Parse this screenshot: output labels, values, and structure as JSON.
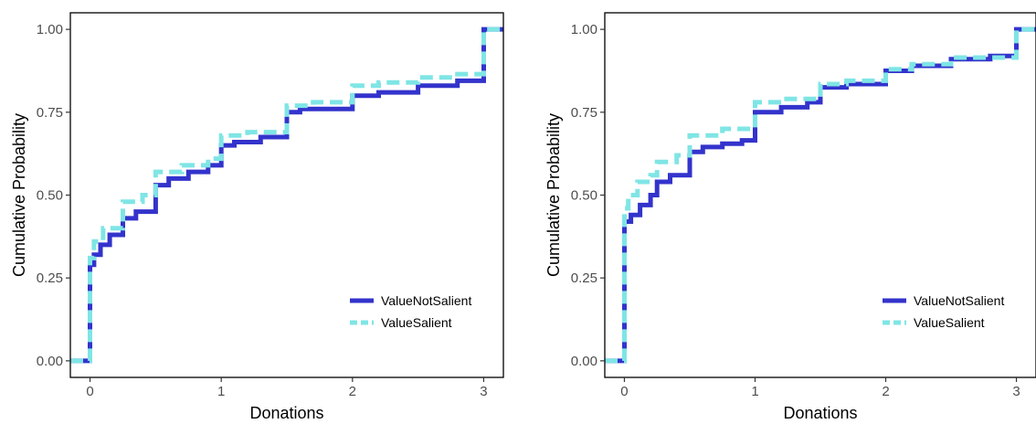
{
  "chart_data": [
    {
      "type": "line",
      "step": true,
      "xlabel": "Donations",
      "ylabel": "Cumulative Probability",
      "xlim": [
        -0.15,
        3.15
      ],
      "ylim": [
        -0.05,
        1.05
      ],
      "xticks": [
        0,
        1,
        2,
        3
      ],
      "xtick_labels": [
        "0",
        "1",
        "2",
        "3"
      ],
      "yticks": [
        0,
        0.25,
        0.5,
        0.75,
        1
      ],
      "ytick_labels": [
        "0.00",
        "0.25",
        "0.50",
        "0.75",
        "1.00"
      ],
      "grid": false,
      "legend_position": "bottom-right",
      "series": [
        {
          "name": "ValueNotSalient",
          "color": "#3333cc",
          "dash": "solid",
          "x": [
            -0.15,
            0,
            0.03,
            0.08,
            0.15,
            0.25,
            0.35,
            0.5,
            0.6,
            0.75,
            0.9,
            1.0,
            1.1,
            1.3,
            1.5,
            1.6,
            2.0,
            2.2,
            2.5,
            2.8,
            3.0,
            3.15
          ],
          "y": [
            0,
            0.29,
            0.32,
            0.35,
            0.38,
            0.43,
            0.45,
            0.53,
            0.55,
            0.57,
            0.59,
            0.65,
            0.66,
            0.675,
            0.75,
            0.76,
            0.8,
            0.81,
            0.83,
            0.845,
            1.0,
            1.0
          ]
        },
        {
          "name": "ValueSalient",
          "color": "#7fe5e5",
          "dash": "dashed",
          "x": [
            -0.15,
            0,
            0.03,
            0.1,
            0.25,
            0.4,
            0.5,
            0.7,
            0.9,
            1.0,
            1.2,
            1.5,
            1.7,
            2.0,
            2.2,
            2.5,
            2.8,
            3.0,
            3.15
          ],
          "y": [
            0,
            0.31,
            0.36,
            0.4,
            0.48,
            0.5,
            0.57,
            0.59,
            0.61,
            0.68,
            0.69,
            0.77,
            0.78,
            0.83,
            0.84,
            0.855,
            0.865,
            1.0,
            1.0
          ]
        }
      ]
    },
    {
      "type": "line",
      "step": true,
      "xlabel": "Donations",
      "ylabel": "Cumulative Probability",
      "xlim": [
        -0.15,
        3.15
      ],
      "ylim": [
        -0.05,
        1.05
      ],
      "xticks": [
        0,
        1,
        2,
        3
      ],
      "xtick_labels": [
        "0",
        "1",
        "2",
        "3"
      ],
      "yticks": [
        0,
        0.25,
        0.5,
        0.75,
        1
      ],
      "ytick_labels": [
        "0.00",
        "0.25",
        "0.50",
        "0.75",
        "1.00"
      ],
      "grid": false,
      "legend_position": "bottom-right",
      "series": [
        {
          "name": "ValueNotSalient",
          "color": "#3333cc",
          "dash": "solid",
          "x": [
            -0.15,
            0,
            0.05,
            0.12,
            0.2,
            0.25,
            0.35,
            0.5,
            0.6,
            0.75,
            0.9,
            1.0,
            1.2,
            1.4,
            1.5,
            1.7,
            2.0,
            2.2,
            2.5,
            2.8,
            3.0,
            3.15
          ],
          "y": [
            0,
            0.42,
            0.44,
            0.47,
            0.5,
            0.54,
            0.56,
            0.63,
            0.645,
            0.655,
            0.665,
            0.75,
            0.765,
            0.78,
            0.825,
            0.835,
            0.875,
            0.89,
            0.91,
            0.92,
            1.0,
            1.0
          ]
        },
        {
          "name": "ValueSalient",
          "color": "#7fe5e5",
          "dash": "dashed",
          "x": [
            -0.15,
            0,
            0.03,
            0.1,
            0.2,
            0.25,
            0.4,
            0.5,
            0.75,
            1.0,
            1.2,
            1.5,
            1.7,
            2.0,
            2.2,
            2.5,
            3.0,
            3.15
          ],
          "y": [
            0,
            0.46,
            0.5,
            0.54,
            0.56,
            0.6,
            0.62,
            0.68,
            0.7,
            0.78,
            0.79,
            0.835,
            0.845,
            0.88,
            0.895,
            0.915,
            1.0,
            1.0
          ]
        }
      ]
    }
  ]
}
